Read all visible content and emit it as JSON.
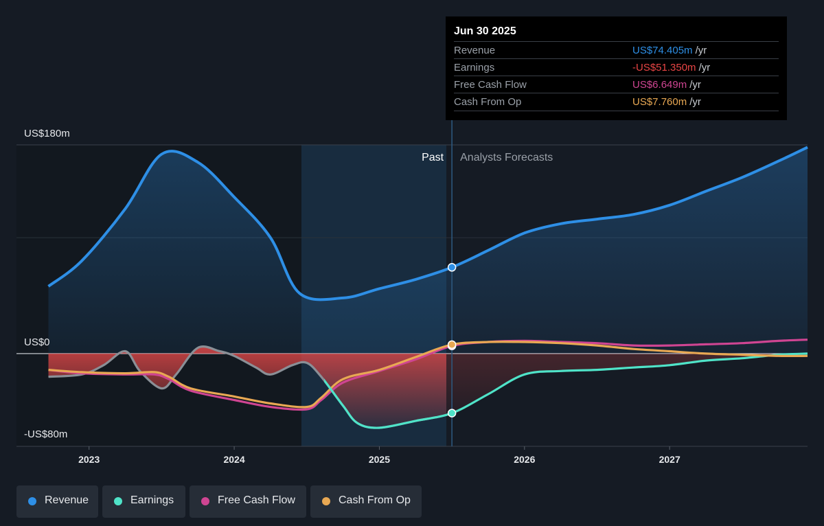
{
  "chart_data": {
    "type": "line",
    "x_ticks": [
      "2023",
      "2024",
      "2025",
      "2026",
      "2027"
    ],
    "y_tick_labels": [
      "US$180m",
      "US$0",
      "-US$80m"
    ],
    "ylim": [
      -80,
      180
    ],
    "x_range": [
      2022.5,
      2027.95
    ],
    "past_label": "Past",
    "forecast_label": "Analysts Forecasts",
    "divider_x": 2025.5,
    "series": [
      {
        "name": "Revenue",
        "color": "#2e8fe6",
        "points": [
          [
            2022.72,
            58
          ],
          [
            2022.95,
            80
          ],
          [
            2023.25,
            125
          ],
          [
            2023.5,
            172
          ],
          [
            2023.75,
            165
          ],
          [
            2024.0,
            135
          ],
          [
            2024.25,
            100
          ],
          [
            2024.45,
            52
          ],
          [
            2024.75,
            48
          ],
          [
            2025.0,
            56
          ],
          [
            2025.25,
            64
          ],
          [
            2025.5,
            74.405
          ],
          [
            2025.75,
            89
          ],
          [
            2026.0,
            104
          ],
          [
            2026.25,
            112
          ],
          [
            2026.5,
            116
          ],
          [
            2026.75,
            120
          ],
          [
            2027.0,
            128
          ],
          [
            2027.25,
            140
          ],
          [
            2027.5,
            152
          ],
          [
            2027.75,
            166
          ],
          [
            2027.95,
            178
          ]
        ]
      },
      {
        "name": "Earnings",
        "color": "#4fe3c8",
        "points": [
          [
            2022.72,
            -20
          ],
          [
            2022.95,
            -18
          ],
          [
            2023.1,
            -10
          ],
          [
            2023.25,
            2
          ],
          [
            2023.35,
            -15
          ],
          [
            2023.5,
            -30
          ],
          [
            2023.6,
            -18
          ],
          [
            2023.75,
            5
          ],
          [
            2023.9,
            2
          ],
          [
            2024.0,
            -2
          ],
          [
            2024.15,
            -12
          ],
          [
            2024.25,
            -18
          ],
          [
            2024.4,
            -10
          ],
          [
            2024.5,
            -8
          ],
          [
            2024.6,
            -20
          ],
          [
            2024.75,
            -45
          ],
          [
            2024.85,
            -60
          ],
          [
            2025.0,
            -64
          ],
          [
            2025.25,
            -58
          ],
          [
            2025.5,
            -51.35
          ],
          [
            2025.75,
            -35
          ],
          [
            2026.0,
            -18
          ],
          [
            2026.25,
            -15
          ],
          [
            2026.5,
            -14
          ],
          [
            2026.75,
            -12
          ],
          [
            2027.0,
            -10
          ],
          [
            2027.25,
            -6
          ],
          [
            2027.5,
            -4
          ],
          [
            2027.75,
            -1
          ],
          [
            2027.95,
            0
          ]
        ]
      },
      {
        "name": "Free Cash Flow",
        "color": "#cf4592",
        "points": [
          [
            2022.72,
            -14
          ],
          [
            2022.95,
            -17
          ],
          [
            2023.25,
            -18
          ],
          [
            2023.45,
            -18
          ],
          [
            2023.55,
            -22
          ],
          [
            2023.7,
            -32
          ],
          [
            2024.0,
            -40
          ],
          [
            2024.25,
            -46
          ],
          [
            2024.5,
            -48
          ],
          [
            2024.6,
            -40
          ],
          [
            2024.75,
            -25
          ],
          [
            2025.0,
            -15
          ],
          [
            2025.25,
            -5
          ],
          [
            2025.5,
            6.649
          ],
          [
            2025.75,
            10
          ],
          [
            2026.0,
            11
          ],
          [
            2026.25,
            10
          ],
          [
            2026.5,
            9
          ],
          [
            2026.75,
            7
          ],
          [
            2027.0,
            7
          ],
          [
            2027.25,
            8
          ],
          [
            2027.5,
            9
          ],
          [
            2027.75,
            11
          ],
          [
            2027.95,
            12
          ]
        ]
      },
      {
        "name": "Cash From Op",
        "color": "#e8a853",
        "points": [
          [
            2022.72,
            -14
          ],
          [
            2022.95,
            -16
          ],
          [
            2023.25,
            -17
          ],
          [
            2023.45,
            -16
          ],
          [
            2023.55,
            -20
          ],
          [
            2023.7,
            -30
          ],
          [
            2024.0,
            -37
          ],
          [
            2024.25,
            -43
          ],
          [
            2024.5,
            -46
          ],
          [
            2024.6,
            -38
          ],
          [
            2024.75,
            -22
          ],
          [
            2025.0,
            -14
          ],
          [
            2025.25,
            -3
          ],
          [
            2025.5,
            7.76
          ],
          [
            2025.75,
            10
          ],
          [
            2026.0,
            10
          ],
          [
            2026.25,
            9
          ],
          [
            2026.5,
            7
          ],
          [
            2026.75,
            4
          ],
          [
            2027.0,
            2
          ],
          [
            2027.25,
            0
          ],
          [
            2027.5,
            -1
          ],
          [
            2027.75,
            -2
          ],
          [
            2027.95,
            -2
          ]
        ]
      }
    ]
  },
  "tooltip": {
    "date": "Jun 30 2025",
    "unit": "/yr",
    "rows": [
      {
        "name": "Revenue",
        "value": "US$74.405m",
        "color": "#2e8fe6"
      },
      {
        "name": "Earnings",
        "value": "-US$51.350m",
        "color": "#e94545"
      },
      {
        "name": "Free Cash Flow",
        "value": "US$6.649m",
        "color": "#cf4592"
      },
      {
        "name": "Cash From Op",
        "value": "US$7.760m",
        "color": "#e8a853"
      }
    ]
  },
  "legend": [
    {
      "label": "Revenue",
      "color": "#2e8fe6"
    },
    {
      "label": "Earnings",
      "color": "#4fe3c8"
    },
    {
      "label": "Free Cash Flow",
      "color": "#cf4592"
    },
    {
      "label": "Cash From Op",
      "color": "#e8a853"
    }
  ]
}
